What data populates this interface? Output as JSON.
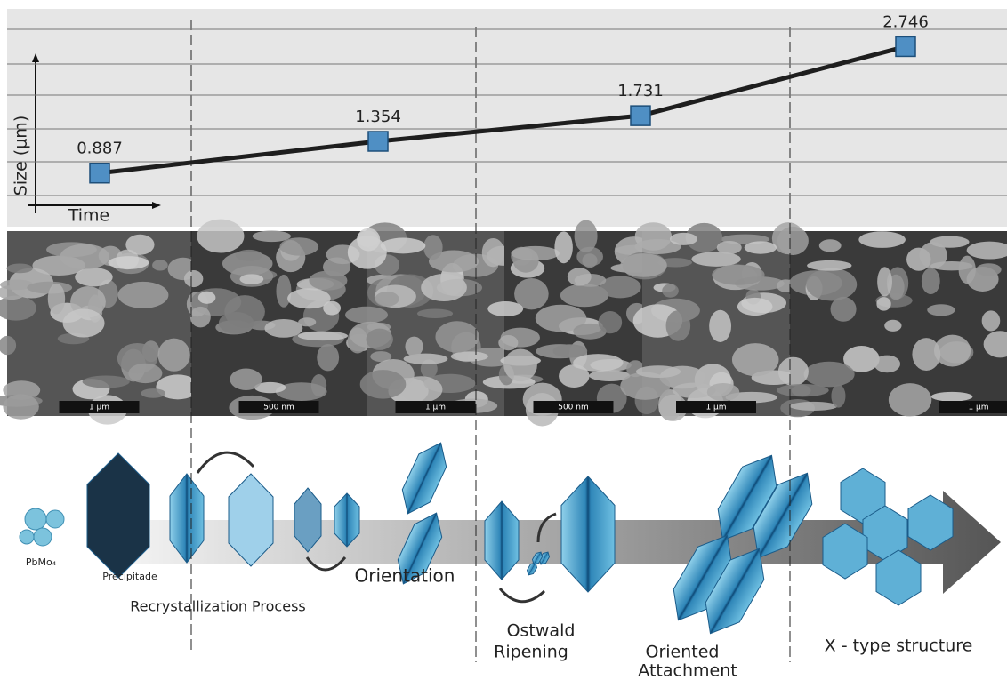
{
  "chart_data": {
    "type": "line",
    "x_label": "Time",
    "y_label": "Size (μm)",
    "categories": [
      null,
      null,
      null,
      null
    ],
    "values": [
      0.887,
      1.354,
      1.731,
      2.746
    ],
    "ylim": [
      0.1,
      3.3
    ],
    "color": "#1e1e1e",
    "marker_color": "#4f8fc4",
    "grid": true
  },
  "scale_bars": [
    "1 μm",
    "500 nm",
    "1 μm",
    "500 nm",
    "1 μm",
    "1 μm"
  ],
  "labels": {
    "pbmo": "PbMo₄",
    "precipitate": "Precipitade",
    "recrystallization": "Recrystallization Process",
    "orientation": "Orientation",
    "ostwald": [
      "Ostwald",
      "Ripening"
    ],
    "attachment": [
      "Oriented",
      "Attachment"
    ],
    "x_type": "X - type structure"
  }
}
